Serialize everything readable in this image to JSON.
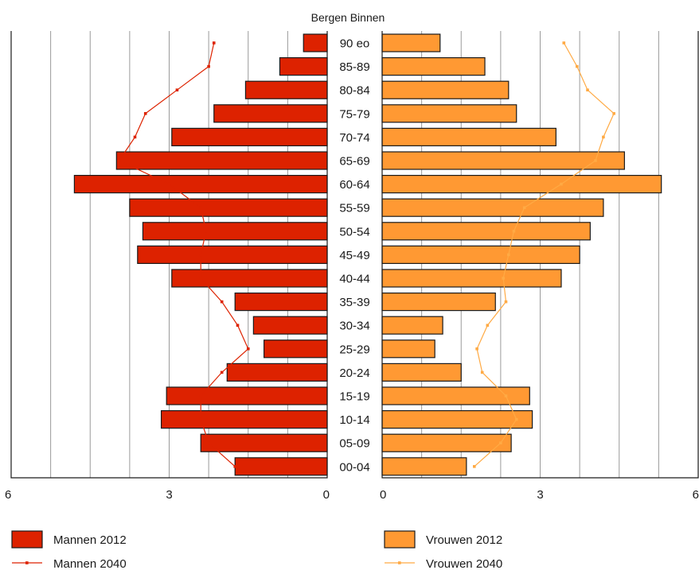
{
  "chart_data": {
    "type": "bar",
    "title": "Bergen Binnen",
    "categories": [
      "90 eo",
      "85-89",
      "80-84",
      "75-79",
      "70-74",
      "65-69",
      "60-64",
      "55-59",
      "50-54",
      "45-49",
      "40-44",
      "35-39",
      "30-34",
      "25-29",
      "20-24",
      "15-19",
      "10-14",
      "05-09",
      "00-04"
    ],
    "series": [
      {
        "name": "Mannen 2012",
        "kind": "bar",
        "side": "left",
        "color": "#dd2200",
        "values": [
          0.9,
          1.8,
          3.1,
          4.3,
          5.9,
          8.0,
          9.6,
          7.5,
          7.0,
          7.2,
          5.9,
          3.5,
          2.8,
          2.4,
          3.8,
          6.1,
          6.3,
          4.8,
          3.5
        ]
      },
      {
        "name": "Mannen 2040",
        "kind": "line",
        "side": "left",
        "color": "#dd2200",
        "values": [
          4.3,
          4.5,
          5.7,
          6.9,
          7.3,
          7.9,
          6.0,
          4.8,
          4.6,
          4.8,
          4.8,
          4.0,
          3.4,
          3.0,
          4.0,
          4.8,
          4.8,
          4.5,
          3.5
        ]
      },
      {
        "name": "Vrouwen 2012",
        "kind": "bar",
        "side": "right",
        "color": "#ff9933",
        "values": [
          2.2,
          3.9,
          4.8,
          5.1,
          6.6,
          9.2,
          10.6,
          8.4,
          7.9,
          7.5,
          6.8,
          4.3,
          2.3,
          2.0,
          3.0,
          5.6,
          5.7,
          4.9,
          3.2
        ]
      },
      {
        "name": "Vrouwen 2040",
        "kind": "line",
        "side": "right",
        "color": "#ffaa44",
        "values": [
          6.9,
          7.4,
          7.8,
          8.8,
          8.4,
          8.1,
          6.8,
          5.4,
          5.0,
          4.8,
          4.6,
          4.7,
          4.0,
          3.6,
          3.8,
          4.7,
          5.1,
          4.5,
          3.5
        ]
      }
    ],
    "axes": {
      "left": {
        "ticks": [
          "6",
          "3",
          "0"
        ],
        "range": [
          0,
          12
        ]
      },
      "right": {
        "ticks": [
          "0",
          "3",
          "6"
        ],
        "range": [
          0,
          12
        ]
      }
    },
    "grid": true,
    "legend_position": "bottom"
  }
}
